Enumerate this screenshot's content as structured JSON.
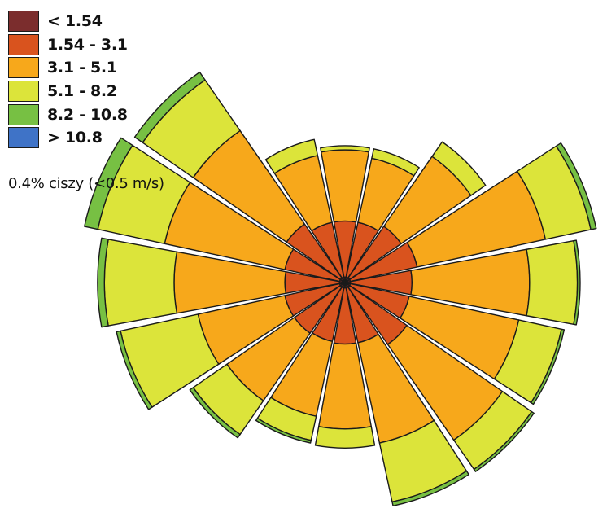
{
  "chart_data": {
    "type": "windrose",
    "title": "",
    "direction_count": 16,
    "speed_bins": [
      {
        "label": "< 1.54",
        "color": "#7b2d2d"
      },
      {
        "label": "1.54 - 3.1",
        "color": "#d9531e"
      },
      {
        "label": "3.1 - 5.1",
        "color": "#f7a81b"
      },
      {
        "label": "5.1 - 8.2",
        "color": "#dce43a"
      },
      {
        "label": "8.2 - 10.8",
        "color": "#77c043"
      },
      {
        "label": "> 10.8",
        "color": "#3f73c7"
      }
    ],
    "directions": [
      {
        "angle": 0,
        "bounds": [
          0.04,
          0.45,
          0.97,
          1.0,
          1.0,
          1.0
        ]
      },
      {
        "angle": 22.5,
        "bounds": [
          0.04,
          0.45,
          0.93,
          1.0,
          1.0,
          1.0
        ]
      },
      {
        "angle": 45,
        "bounds": [
          0.04,
          0.5,
          1.12,
          1.25,
          1.25,
          1.25
        ]
      },
      {
        "angle": 67.5,
        "bounds": [
          0.04,
          0.54,
          1.5,
          1.84,
          1.88,
          1.88
        ]
      },
      {
        "angle": 90,
        "bounds": [
          0.04,
          0.49,
          1.35,
          1.7,
          1.72,
          1.72
        ]
      },
      {
        "angle": 112.5,
        "bounds": [
          0.04,
          0.48,
          1.3,
          1.62,
          1.64,
          1.64
        ]
      },
      {
        "angle": 135,
        "bounds": [
          0.04,
          0.55,
          1.4,
          1.66,
          1.68,
          1.68
        ]
      },
      {
        "angle": 157.5,
        "bounds": [
          0.04,
          0.45,
          1.2,
          1.64,
          1.67,
          1.67
        ]
      },
      {
        "angle": 180,
        "bounds": [
          0.04,
          0.45,
          1.07,
          1.21,
          1.21,
          1.21
        ]
      },
      {
        "angle": 202.5,
        "bounds": [
          0.04,
          0.44,
          1.0,
          1.18,
          1.2,
          1.2
        ]
      },
      {
        "angle": 225,
        "bounds": [
          0.04,
          0.45,
          1.05,
          1.35,
          1.38,
          1.38
        ]
      },
      {
        "angle": 247.5,
        "bounds": [
          0.04,
          0.45,
          1.1,
          1.68,
          1.71,
          1.71
        ]
      },
      {
        "angle": 270,
        "bounds": [
          0.04,
          0.44,
          1.25,
          1.76,
          1.81,
          1.81
        ]
      },
      {
        "angle": 292.5,
        "bounds": [
          0.04,
          0.45,
          1.35,
          1.85,
          1.95,
          1.95
        ]
      },
      {
        "angle": 315,
        "bounds": [
          0.04,
          0.52,
          1.35,
          1.8,
          1.87,
          1.87
        ]
      },
      {
        "angle": 337.5,
        "bounds": [
          0.04,
          0.45,
          0.95,
          1.07,
          1.07,
          1.07
        ]
      }
    ],
    "calm_text": "0.4% ciszy (<0.5 m/s)"
  }
}
